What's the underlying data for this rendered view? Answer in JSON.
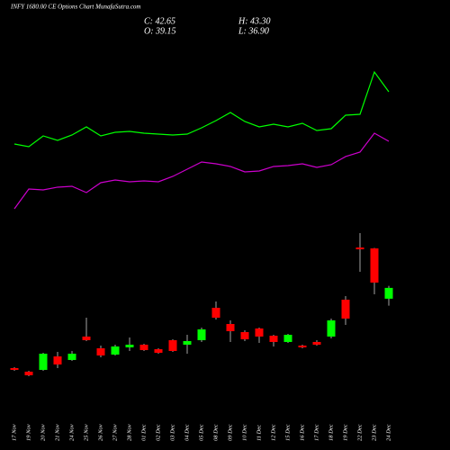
{
  "chart_data": {
    "type": "candlestick",
    "title": "INFY 1680.00 CE Options Chart MunafaSutra.com",
    "ohlc_labels": [
      "C: 42.65",
      "H: 43.30",
      "O: 39.15",
      "L: 36.90"
    ],
    "categories": [
      "17 Nov",
      "19 Nov",
      "20 Nov",
      "21 Nov",
      "24 Nov",
      "25 Nov",
      "26 Nov",
      "27 Nov",
      "28 Nov",
      "01 Dec",
      "02 Dec",
      "03 Dec",
      "04 Dec",
      "05 Dec",
      "08 Dec",
      "09 Dec",
      "10 Dec",
      "11 Dec",
      "12 Dec",
      "15 Dec",
      "16 Dec",
      "17 Dec",
      "18 Dec",
      "19 Dec",
      "22 Dec",
      "23 Dec",
      "24 Dec"
    ],
    "open": [
      16.65,
      15.49,
      16.07,
      20.44,
      19.28,
      26.87,
      23.07,
      21.03,
      23.37,
      24.24,
      22.78,
      25.7,
      24.24,
      25.7,
      36.2,
      30.95,
      28.32,
      29.49,
      27.15,
      25.12,
      23.95,
      25.12,
      26.87,
      38.83,
      55.75,
      55.46,
      39.15
    ],
    "high": [
      16.94,
      15.78,
      21.61,
      21.9,
      22.2,
      32.99,
      23.95,
      24.24,
      26.57,
      24.53,
      23.07,
      25.99,
      27.45,
      29.78,
      38.25,
      32.12,
      28.91,
      29.78,
      27.45,
      27.74,
      24.24,
      25.7,
      32.7,
      40.0,
      60.42,
      55.6,
      43.3
    ],
    "low": [
      15.78,
      14.03,
      15.78,
      16.65,
      18.98,
      25.41,
      20.15,
      20.74,
      22.2,
      22.2,
      21.32,
      21.9,
      21.32,
      25.12,
      32.41,
      25.12,
      25.41,
      24.82,
      23.66,
      24.82,
      23.07,
      23.95,
      26.28,
      30.66,
      47.88,
      40.58,
      36.9
    ],
    "close": [
      16.07,
      14.32,
      21.32,
      17.82,
      21.32,
      25.7,
      20.74,
      23.66,
      24.24,
      22.49,
      21.61,
      22.2,
      25.41,
      29.2,
      32.99,
      28.62,
      25.99,
      26.87,
      25.12,
      27.45,
      23.37,
      24.24,
      32.12,
      32.7,
      55.17,
      44.37,
      42.65
    ],
    "up_color": "#00ff00",
    "down_color": "#ff0000",
    "overlays": [
      {
        "color": "#00ff00",
        "values": [
          89.31,
          88.44,
          91.94,
          90.48,
          92.23,
          94.86,
          91.94,
          93.11,
          93.4,
          92.81,
          92.52,
          92.23,
          92.52,
          94.56,
          96.9,
          99.52,
          96.61,
          94.86,
          95.73,
          94.86,
          96.02,
          93.69,
          94.27,
          98.65,
          98.94,
          112.66,
          106.24
        ]
      },
      {
        "color": "#cc00cc",
        "values": [
          68.3,
          74.72,
          74.43,
          75.31,
          75.6,
          73.55,
          76.76,
          77.64,
          77.06,
          77.35,
          77.06,
          78.81,
          81.14,
          83.48,
          82.89,
          82.02,
          80.27,
          80.56,
          82.02,
          82.31,
          82.89,
          81.73,
          82.6,
          85.23,
          86.69,
          92.81,
          90.19
        ]
      }
    ],
    "ylim": [
      7.6,
      136
    ]
  }
}
